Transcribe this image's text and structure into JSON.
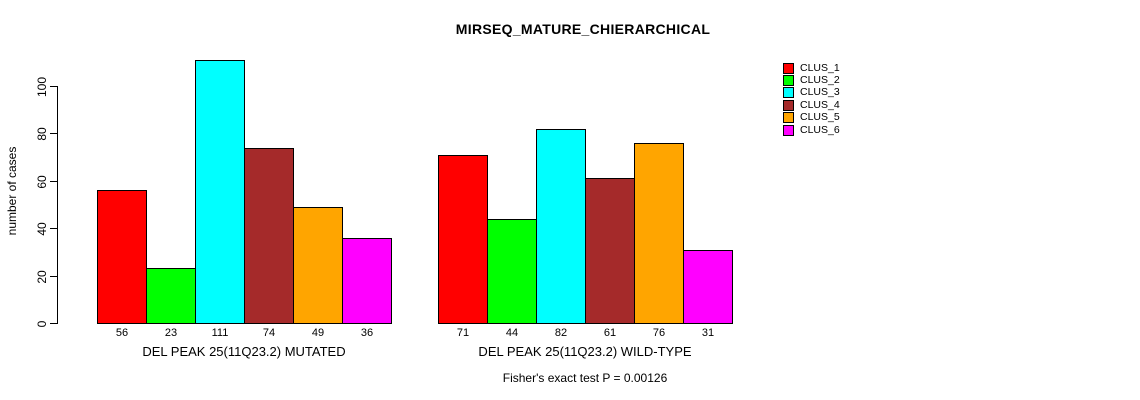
{
  "chart_data": {
    "type": "bar",
    "title": "MIRSEQ_MATURE_CHIERARCHICAL",
    "ylabel": "number of cases",
    "xlabel": "",
    "ylim": [
      0,
      111
    ],
    "yticks": [
      0,
      20,
      40,
      60,
      80,
      100
    ],
    "grid": false,
    "legend_position": "right",
    "clusters": [
      "CLUS_1",
      "CLUS_2",
      "CLUS_3",
      "CLUS_4",
      "CLUS_5",
      "CLUS_6"
    ],
    "colors": [
      "#FF0000",
      "#00FF00",
      "#00FFFF",
      "#A52A2A",
      "#FFA500",
      "#FF00FF"
    ],
    "groups": [
      {
        "label": "DEL PEAK 25(11Q23.2) MUTATED",
        "values": [
          56,
          23,
          111,
          74,
          49,
          36
        ]
      },
      {
        "label": "DEL PEAK 25(11Q23.2) WILD-TYPE",
        "values": [
          71,
          44,
          82,
          61,
          76,
          31
        ]
      }
    ],
    "annotation": "Fisher's exact test P = 0.00126"
  }
}
